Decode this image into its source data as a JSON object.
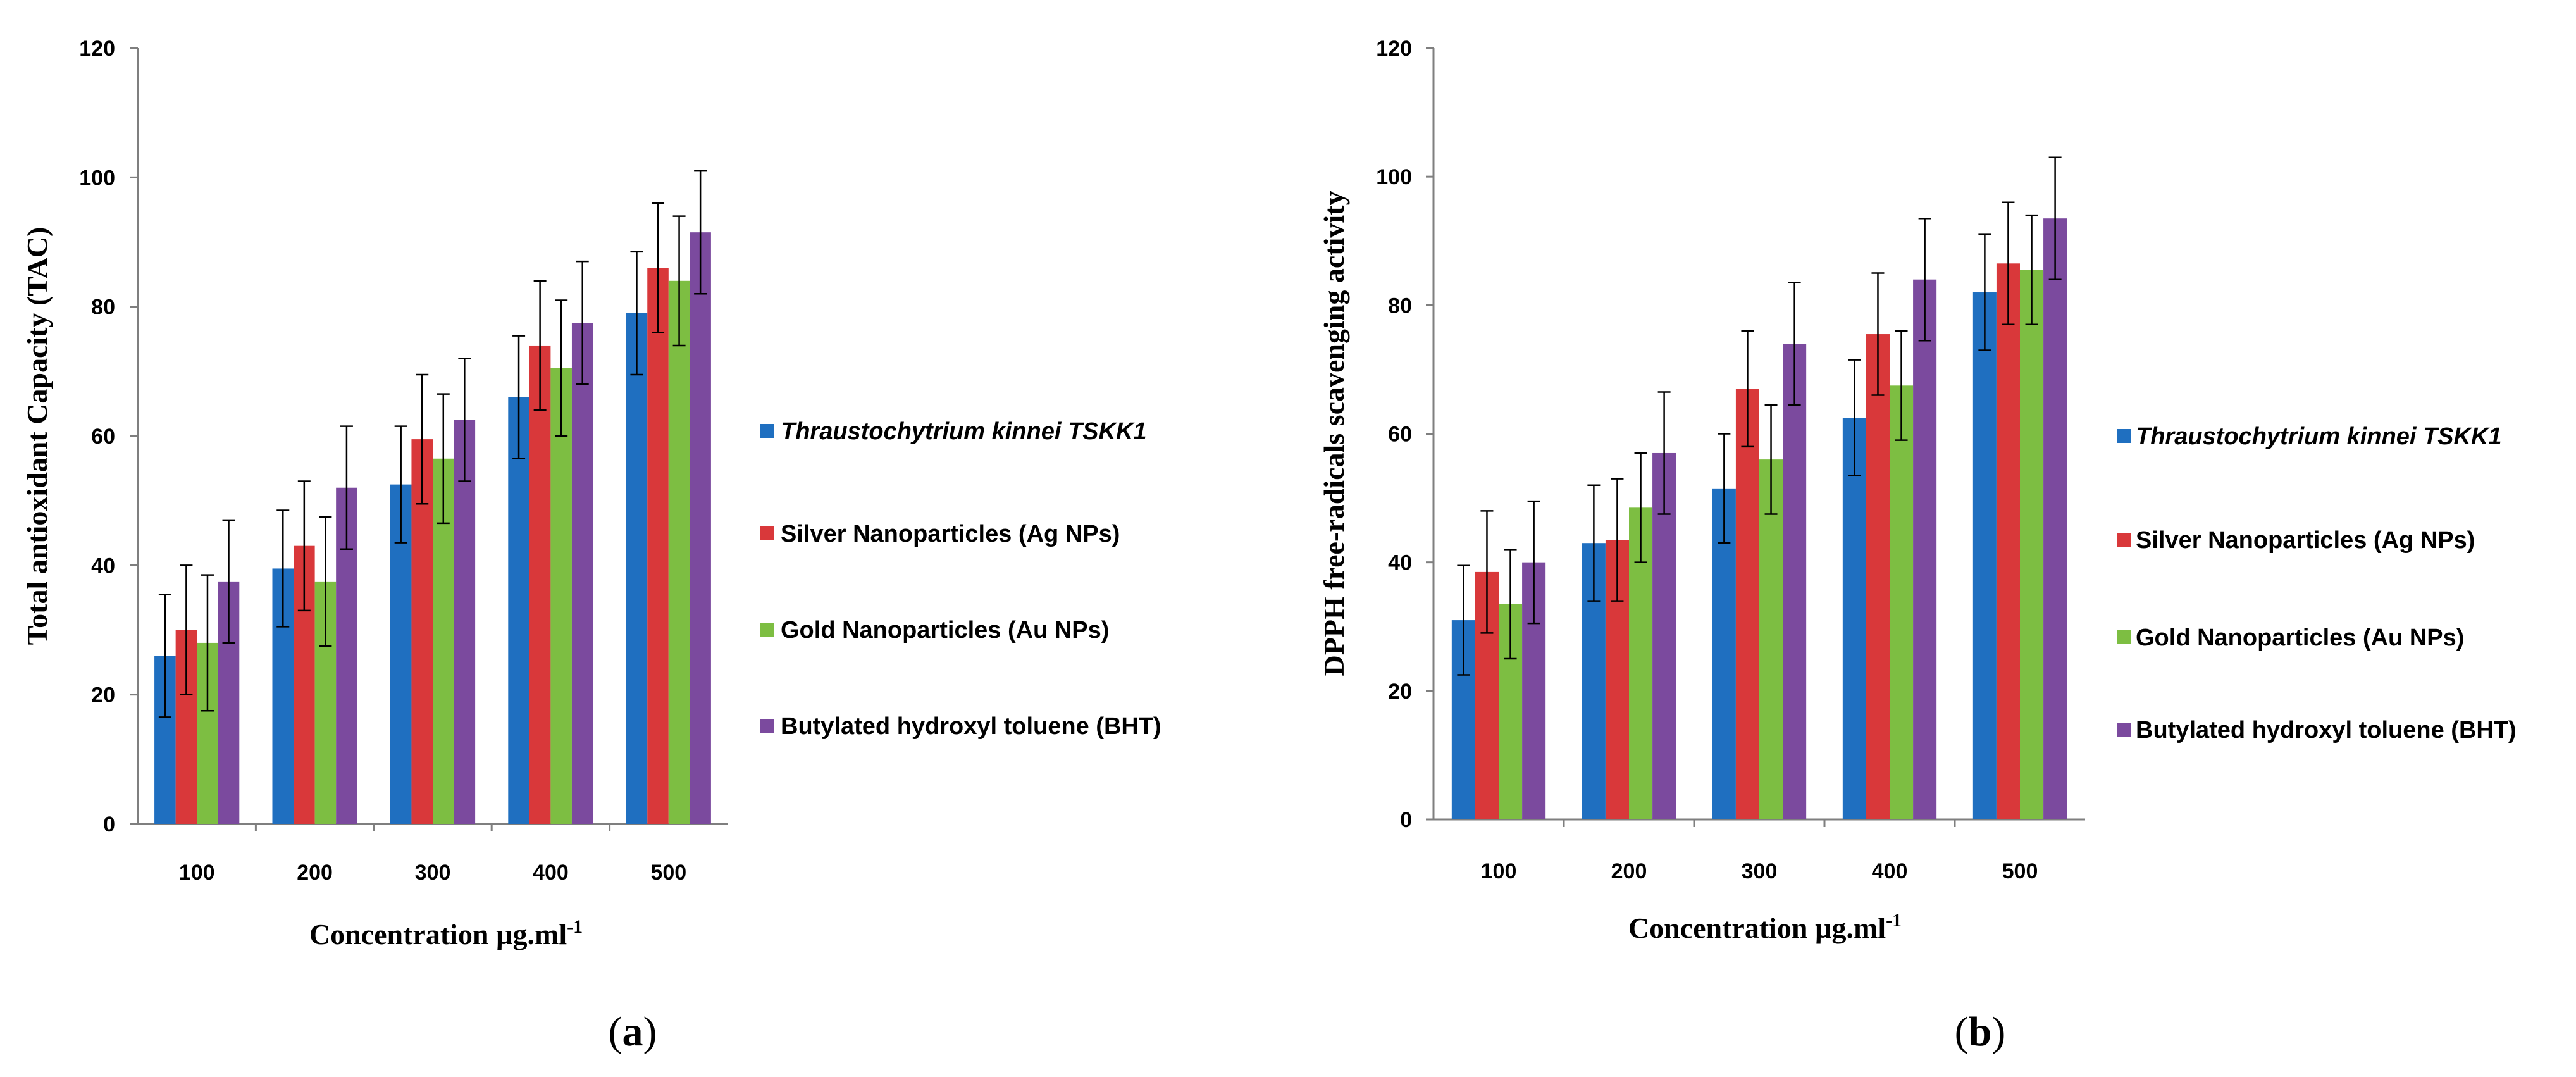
{
  "chart_data": [
    {
      "type": "bar",
      "panel": "a",
      "panel_label_open": "(",
      "panel_label_letter": "a",
      "panel_label_close": ")",
      "categories": [
        "100",
        "200",
        "300",
        "400",
        "500"
      ],
      "ylim": [
        0,
        120
      ],
      "yticks": [
        "0",
        "20",
        "40",
        "60",
        "80",
        "100",
        "120"
      ],
      "ylabel": "Total antioxidant Capacity  (TAC)",
      "xlabel_main": "Concentration µg.ml",
      "xlabel_sup": "-1",
      "series": [
        {
          "name": "Thraustochytrium kinnei TSKK1",
          "color": "#1f6fc0",
          "italic": true,
          "values": [
            26,
            39.5,
            52.5,
            66,
            79
          ],
          "errors": [
            9.5,
            9,
            9,
            9.5,
            9.5
          ]
        },
        {
          "name": "Silver Nanoparticles (Ag NPs)",
          "color": "#d9383a",
          "italic": false,
          "values": [
            30,
            43,
            59.5,
            74,
            86
          ],
          "errors": [
            10,
            10,
            10,
            10,
            10
          ]
        },
        {
          "name": "Gold Nanoparticles (Au NPs)",
          "color": "#7dbe42",
          "italic": false,
          "values": [
            28,
            37.5,
            56.5,
            70.5,
            84
          ],
          "errors": [
            10.5,
            10,
            10,
            10.5,
            10
          ]
        },
        {
          "name": "Butylated hydroxyl toluene (BHT)",
          "color": "#7b4a9e",
          "italic": false,
          "values": [
            37.5,
            52,
            62.5,
            77.5,
            91.5
          ],
          "errors": [
            9.5,
            9.5,
            9.5,
            9.5,
            9.5
          ]
        }
      ]
    },
    {
      "type": "bar",
      "panel": "b",
      "panel_label_open": "(",
      "panel_label_letter": "b",
      "panel_label_close": ")",
      "categories": [
        "100",
        "200",
        "300",
        "400",
        "500"
      ],
      "ylim": [
        0,
        120
      ],
      "yticks": [
        "0",
        "20",
        "40",
        "60",
        "80",
        "100",
        "120"
      ],
      "ylabel": "DPPH free-radicals scavenging activity",
      "xlabel_main": "Concentration µg.ml",
      "xlabel_sup": "-1",
      "series": [
        {
          "name": "Thraustochytrium kinnei TSKK1",
          "color": "#1f6fc0",
          "italic": true,
          "values": [
            31,
            43,
            51.5,
            62.5,
            82
          ],
          "errors": [
            8.5,
            9,
            8.5,
            9,
            9
          ]
        },
        {
          "name": "Silver Nanoparticles (Ag NPs)",
          "color": "#d9383a",
          "italic": false,
          "values": [
            38.5,
            43.5,
            67,
            75.5,
            86.5
          ],
          "errors": [
            9.5,
            9.5,
            9,
            9.5,
            9.5
          ]
        },
        {
          "name": "Gold Nanoparticles (Au NPs)",
          "color": "#7dbe42",
          "italic": false,
          "values": [
            33.5,
            48.5,
            56,
            67.5,
            85.5
          ],
          "errors": [
            8.5,
            8.5,
            8.5,
            8.5,
            8.5
          ]
        },
        {
          "name": "Butylated hydroxyl toluene (BHT)",
          "color": "#7b4a9e",
          "italic": false,
          "values": [
            40,
            57,
            74,
            84,
            93.5
          ],
          "errors": [
            9.5,
            9.5,
            9.5,
            9.5,
            9.5
          ]
        }
      ]
    }
  ]
}
